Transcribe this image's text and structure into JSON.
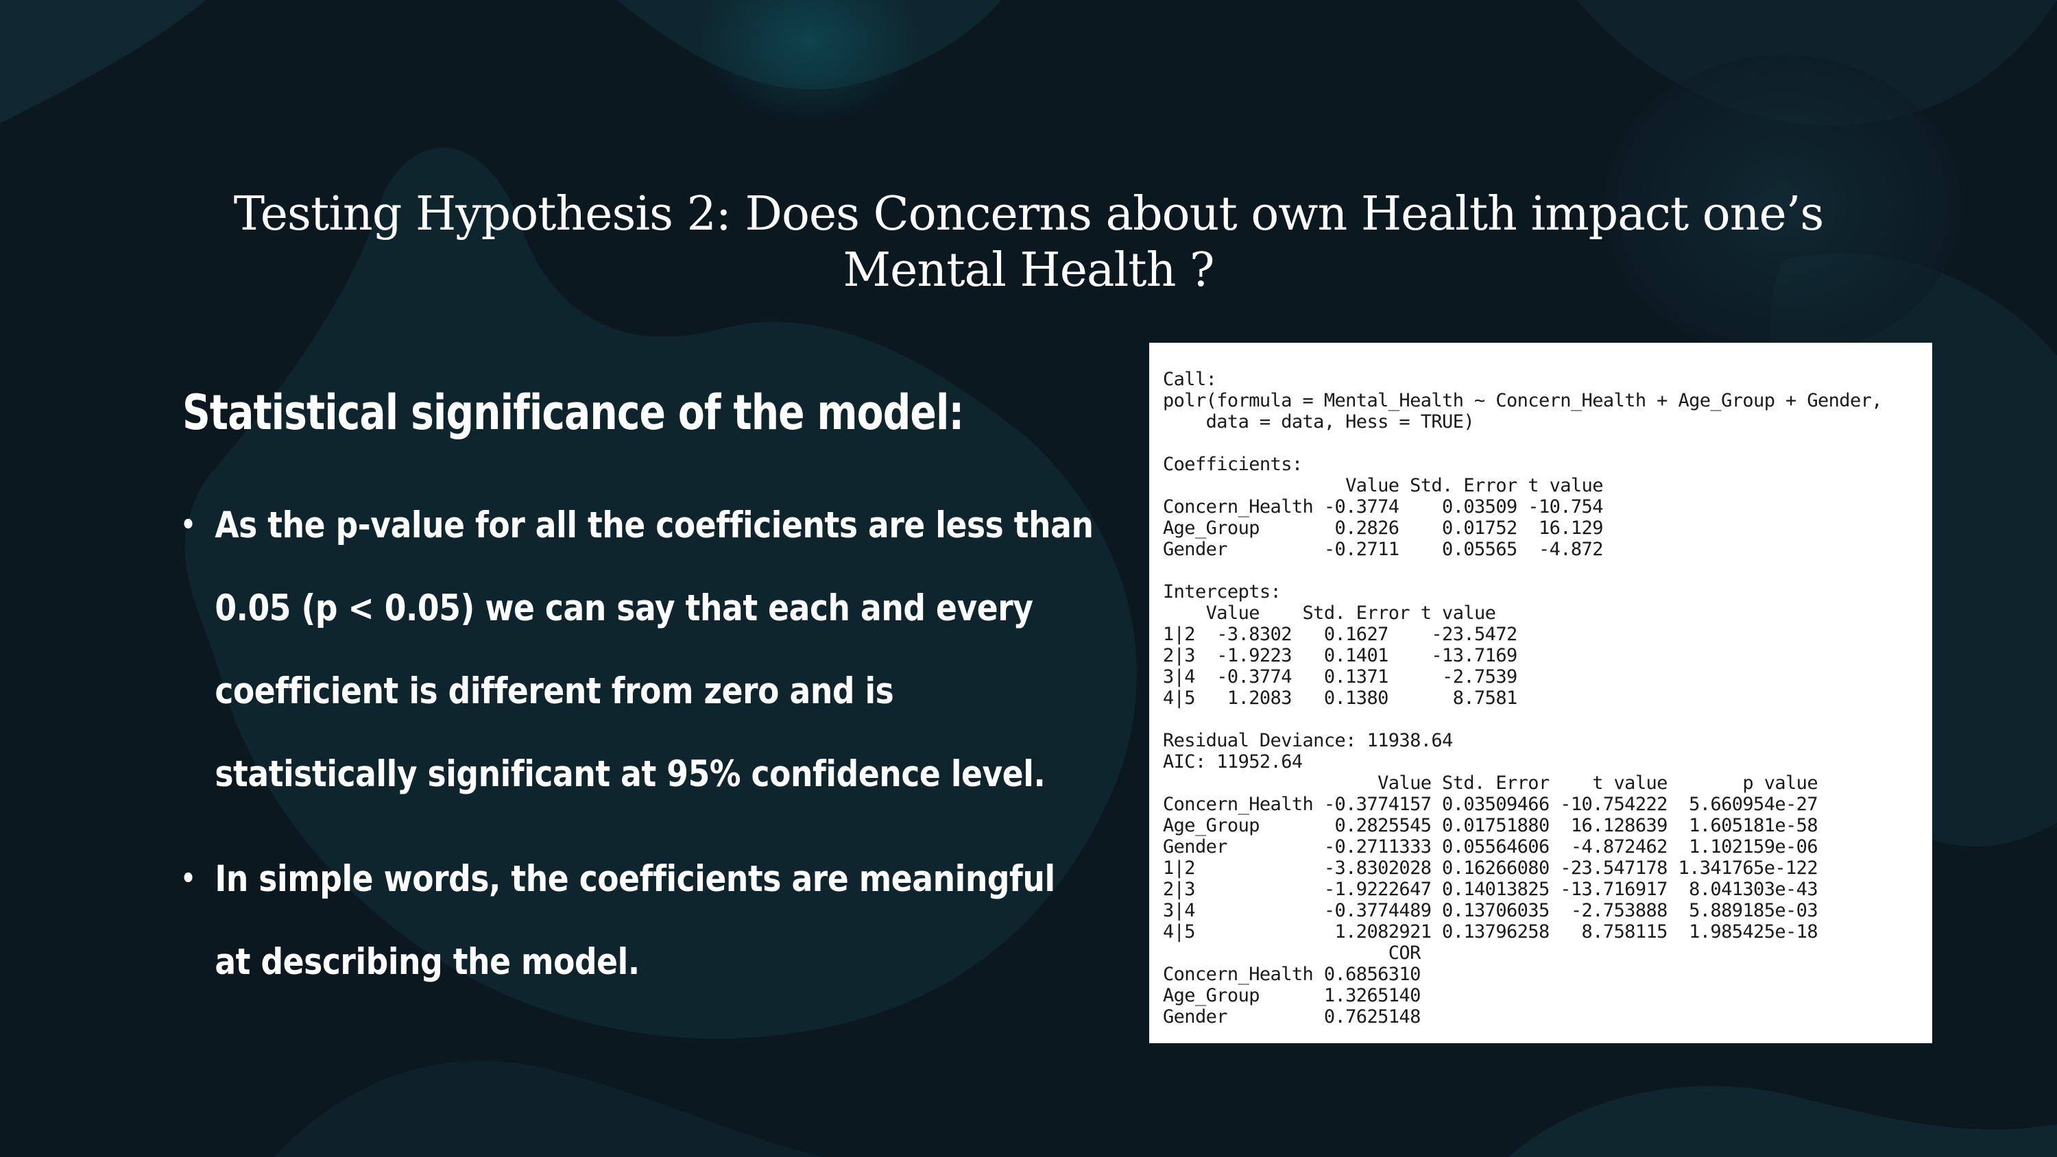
{
  "slide": {
    "title": "Testing Hypothesis 2: Does Concerns about own Health impact one’s Mental Health ?",
    "heading": "Statistical significance of the model:",
    "bullets": [
      "As the p-value for all the coefficients are less than 0.05 (p < 0.05) we can say that each and every coefficient is different from zero and is statistically significant at 95% confidence level.",
      "In simple words, the coefficients are meaningful at describing the model."
    ],
    "bullet_symbol": "•"
  },
  "r_output": {
    "lines": [
      "Call:",
      "polr(formula = Mental_Health ~ Concern_Health + Age_Group + Gender,",
      "    data = data, Hess = TRUE)",
      "",
      "Coefficients:",
      "                 Value Std. Error t value",
      "Concern_Health -0.3774    0.03509 -10.754",
      "Age_Group       0.2826    0.01752  16.129",
      "Gender         -0.2711    0.05565  -4.872",
      "",
      "Intercepts:",
      "    Value    Std. Error t value",
      "1|2  -3.8302   0.1627    -23.5472",
      "2|3  -1.9223   0.1401    -13.7169",
      "3|4  -0.3774   0.1371     -2.7539",
      "4|5   1.2083   0.1380      8.7581",
      "",
      "Residual Deviance: 11938.64",
      "AIC: 11952.64",
      "                    Value Std. Error    t value       p value",
      "Concern_Health -0.3774157 0.03509466 -10.754222  5.660954e-27",
      "Age_Group       0.2825545 0.01751880  16.128639  1.605181e-58",
      "Gender         -0.2711333 0.05564606  -4.872462  1.102159e-06",
      "1|2            -3.8302028 0.16266080 -23.547178 1.341765e-122",
      "2|3            -1.9222647 0.14013825 -13.716917  8.041303e-43",
      "3|4            -0.3774489 0.13706035  -2.753888  5.889185e-03",
      "4|5             1.2082921 0.13796258   8.758115  1.985425e-18",
      "                     COR",
      "Concern_Health 0.6856310",
      "Age_Group      1.3265140",
      "Gender         0.7625148"
    ]
  },
  "colors": {
    "background": "#0c1b24",
    "text": "#ffffff",
    "panel": "#ffffff",
    "panel_text": "#1a1a1a"
  }
}
